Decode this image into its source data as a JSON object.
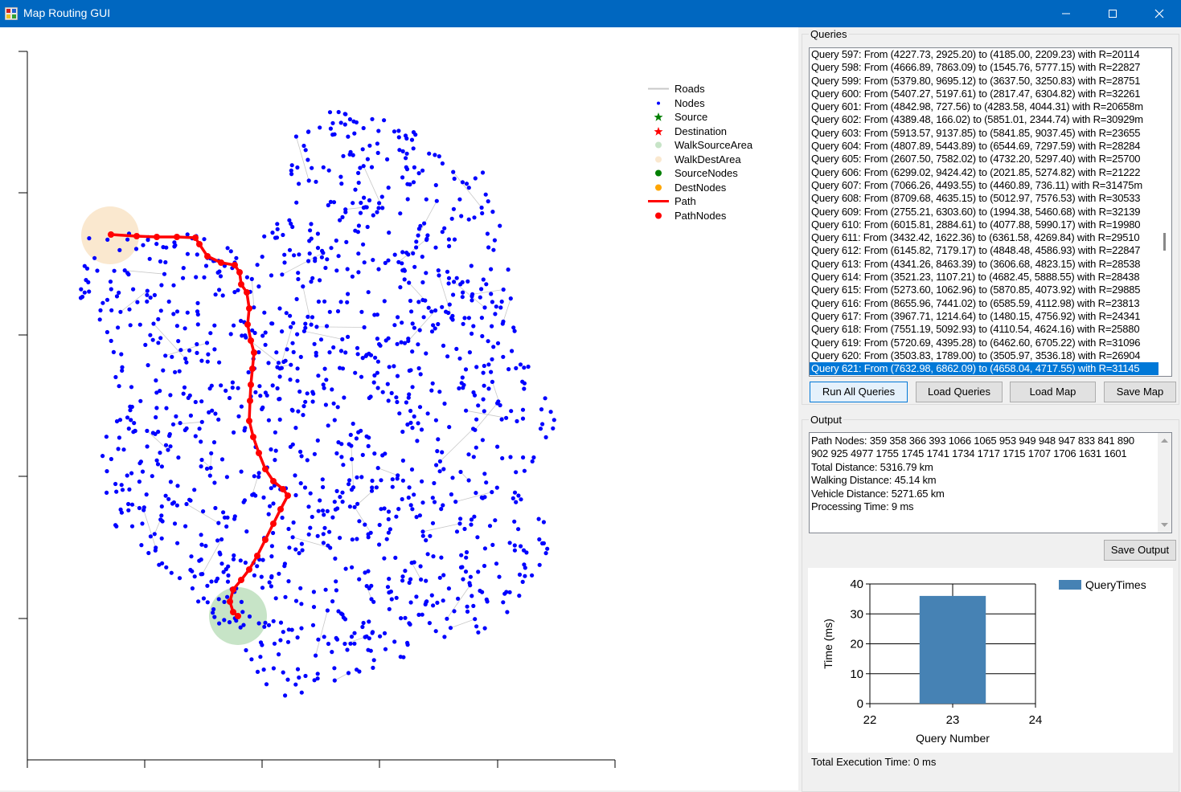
{
  "window": {
    "title": "Map Routing GUI",
    "controls": {
      "minimize": "minimize-icon",
      "maximize": "maximize-icon",
      "close": "close-icon"
    }
  },
  "legend": {
    "items": [
      {
        "label": "Roads",
        "marker": "line",
        "color": "#c8c8c8"
      },
      {
        "label": "Nodes",
        "marker": "dot",
        "color": "#0000ff"
      },
      {
        "label": "Source",
        "marker": "star",
        "color": "#007f00"
      },
      {
        "label": "Destination",
        "marker": "star",
        "color": "#ff0000"
      },
      {
        "label": "WalkSourceArea",
        "marker": "circle",
        "color": "#c7e4c7"
      },
      {
        "label": "WalkDestArea",
        "marker": "circle",
        "color": "#fae8cf"
      },
      {
        "label": "SourceNodes",
        "marker": "circle",
        "color": "#007f00"
      },
      {
        "label": "DestNodes",
        "marker": "circle",
        "color": "#ffa500"
      },
      {
        "label": "Path",
        "marker": "thickline",
        "color": "#ff0000"
      },
      {
        "label": "PathNodes",
        "marker": "circle",
        "color": "#ff0000"
      }
    ]
  },
  "queries": {
    "group_label": "Queries",
    "items": [
      "Query 597: From (4227.73, 2925.20) to (4185.00, 2209.23) with R=20114",
      "Query 598: From (4666.89, 7863.09) to (1545.76, 5777.15) with R=22827",
      "Query 599: From (5379.80, 9695.12) to (3637.50, 3250.83) with R=28751",
      "Query 600: From (5407.27, 5197.61) to (2817.47, 6304.82) with R=32261",
      "Query 601: From (4842.98, 727.56) to (4283.58, 4044.31) with R=20658m",
      "Query 602: From (4389.48, 166.02) to (5851.01, 2344.74) with R=30929m",
      "Query 603: From (5913.57, 9137.85) to (5841.85, 9037.45) with R=23655",
      "Query 604: From (4807.89, 5443.89) to (6544.69, 7297.59) with R=28284",
      "Query 605: From (2607.50, 7582.02) to (4732.20, 5297.40) with R=25700",
      "Query 606: From (6299.02, 9424.42) to (2021.85, 5274.82) with R=21222",
      "Query 607: From (7066.26, 4493.55) to (4460.89, 736.11) with R=31475m",
      "Query 608: From (8709.68, 4635.15) to (5012.97, 7576.53) with R=30533",
      "Query 609: From (2755.21, 6303.60) to (1994.38, 5460.68) with R=32139",
      "Query 610: From (6015.81, 2884.61) to (4077.88, 5990.17) with R=19980",
      "Query 611: From (3432.42, 1622.36) to (6361.58, 4269.84) with R=29510",
      "Query 612: From (6145.82, 7179.17) to (4848.48, 4586.93) with R=22847",
      "Query 613: From (4341.26, 8463.39) to (3606.68, 4823.15) with R=28538",
      "Query 614: From (3521.23, 1107.21) to (4682.45, 5888.55) with R=28438",
      "Query 615: From (5273.60, 1062.96) to (5870.85, 4073.92) with R=29885",
      "Query 616: From (8655.96, 7441.02) to (6585.59, 4112.98) with R=23813",
      "Query 617: From (3967.71, 1214.64) to (1480.15, 4756.92) with R=24341",
      "Query 618: From (7551.19, 5092.93) to (4110.54, 4624.16) with R=25880",
      "Query 619: From (5720.69, 4395.28) to (6462.60, 6705.22) with R=31096",
      "Query 620: From (3503.83, 1789.00) to (3505.97, 3536.18) with R=26904",
      "Query 621: From (7632.98, 6862.09) to (4658.04, 4717.55) with R=31145"
    ],
    "selected_index": 24
  },
  "buttons": {
    "run_all": "Run All Queries",
    "load_queries": "Load Queries",
    "load_map": "Load Map",
    "save_map": "Save Map",
    "save_output": "Save Output"
  },
  "output": {
    "group_label": "Output",
    "lines": [
      "Path Nodes: 359 358 366 393 1066 1065 953 949 948 947 833 841 890",
      "902 925 4977 1755 1745 1741 1734 1717 1715 1707 1706 1631 1601",
      "Total Distance: 5316.79 km",
      "Walking Distance: 45.14 km",
      "Vehicle Distance: 5271.65 km",
      "Processing Time: 9 ms"
    ]
  },
  "chart_data": {
    "type": "bar",
    "x": [
      23
    ],
    "series": [
      {
        "name": "QueryTimes",
        "values": [
          36
        ],
        "color": "#4682b4"
      }
    ],
    "xlabel": "Query Number",
    "ylabel": "Time (ms)",
    "xlim": [
      22,
      24
    ],
    "ylim": [
      0,
      40
    ],
    "xticks": [
      "22",
      "23",
      "24"
    ],
    "yticks": [
      "0",
      "10",
      "20",
      "30",
      "40"
    ],
    "grid": true,
    "legend_position": "top-right"
  },
  "footer": {
    "total_execution": "Total Execution Time: 0 ms"
  }
}
